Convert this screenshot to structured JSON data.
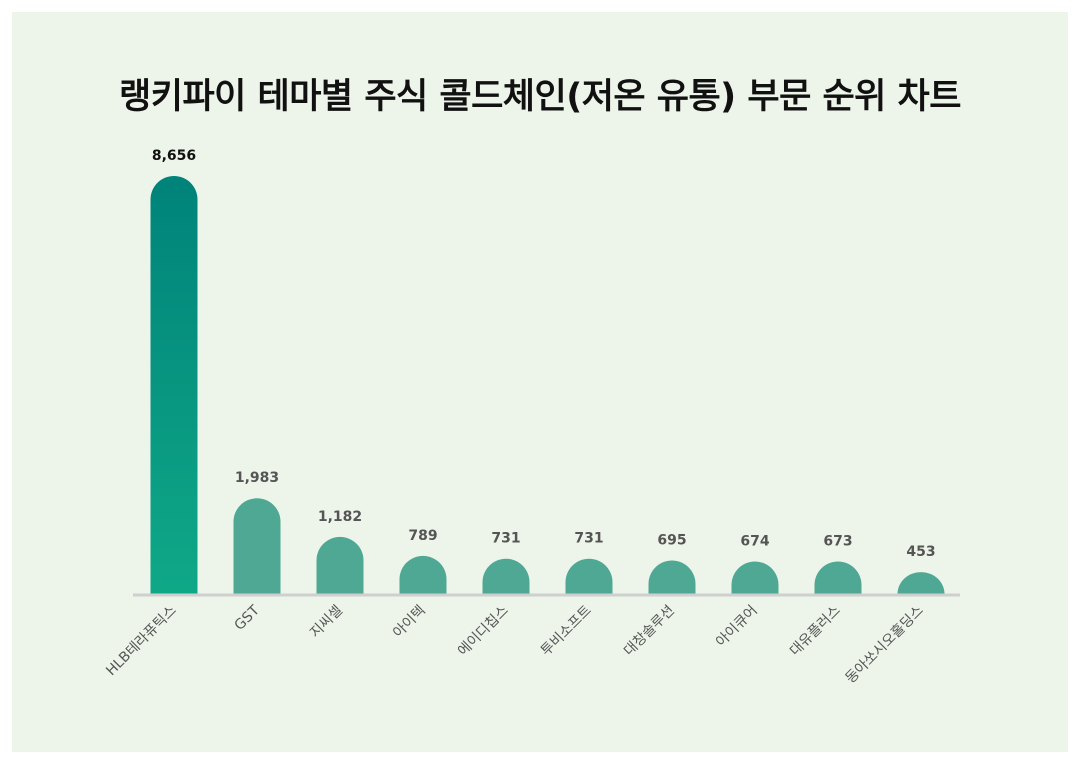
{
  "title": "랭키파이 테마별 주식 콜드체인(저온 유통) 부문 순위 차트",
  "colors": {
    "background": "#edf5ea",
    "top_bar_gradient_top": "#00837a",
    "top_bar_gradient_bottom": "#0fa887",
    "other_bars": "#4ea893",
    "top_value_text": "#111111",
    "value_text": "#555555",
    "baseline": "#cfcfcf"
  },
  "chart_data": {
    "type": "bar",
    "title": "랭키파이 테마별 주식 콜드체인(저온 유통) 부문 순위 차트",
    "xlabel": "",
    "ylabel": "",
    "categories": [
      "HLB테라퓨틱스",
      "GST",
      "지씨셀",
      "아이텍",
      "에이디칩스",
      "투비소프트",
      "대창솔루션",
      "아이큐어",
      "대유플러스",
      "동아쏘시오홀딩스"
    ],
    "values": [
      8656,
      1983,
      1182,
      789,
      731,
      731,
      695,
      674,
      673,
      453
    ],
    "value_labels": [
      "8,656",
      "1,983",
      "1,182",
      "789",
      "731",
      "731",
      "695",
      "674",
      "673",
      "453"
    ],
    "grid": false,
    "legend": "none"
  }
}
